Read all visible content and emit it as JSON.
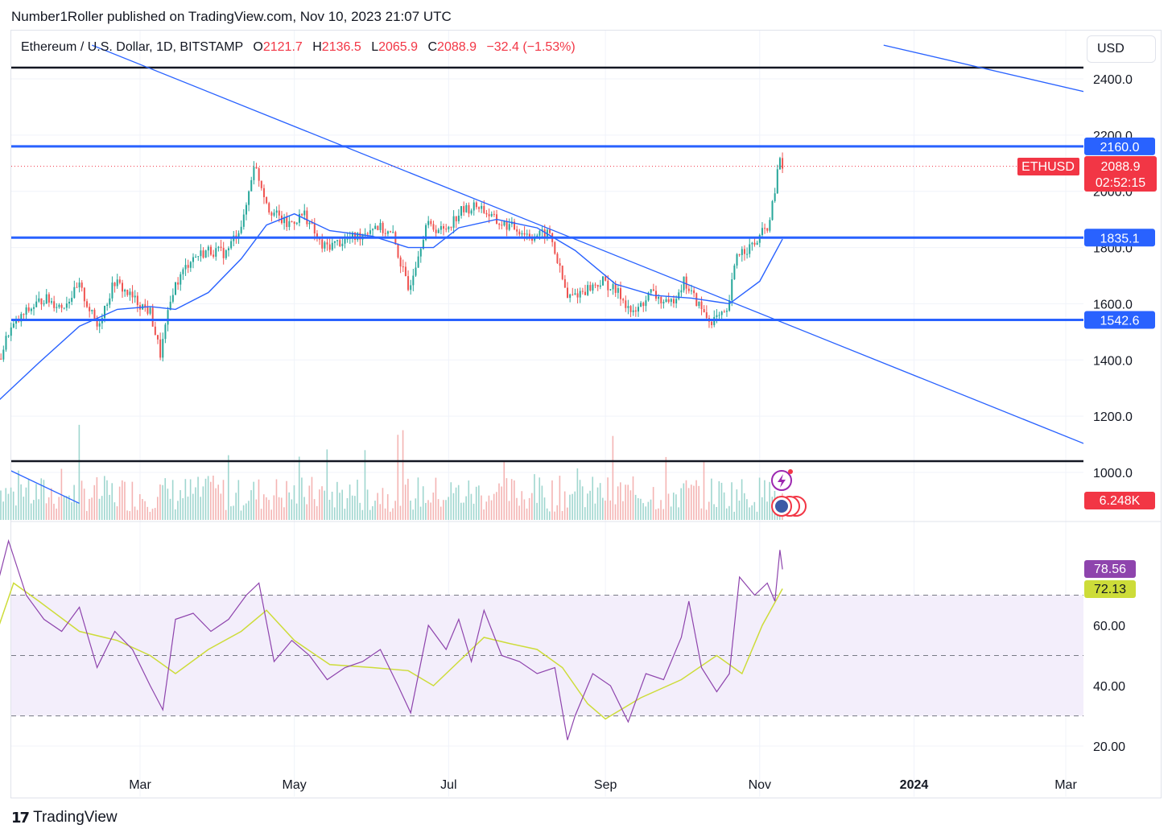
{
  "header": {
    "publisher_line": "Number1Roller published on TradingView.com, Nov 10, 2023 21:07 UTC"
  },
  "legend": {
    "symbol": "Ethereum / U.S. Dollar, 1D, BITSTAMP",
    "open_label": "O",
    "open": "2121.7",
    "high_label": "H",
    "high": "2136.5",
    "low_label": "L",
    "low": "2065.9",
    "close_label": "C",
    "close": "2088.9",
    "change": "−32.4 (−1.53%)"
  },
  "currency_button": "USD",
  "footer": {
    "brand": "TradingView",
    "logo_glyph": "17"
  },
  "colors": {
    "up": "#26a69a",
    "down": "#ef5350",
    "ma": "#2962ff",
    "trendline": "#2962ff",
    "level_blue": "#2962ff",
    "level_black": "#131722",
    "rsi": "#8e44ad",
    "rsi_ma": "#cddc39",
    "rsi_band": "#f3eefb",
    "price_badge": "#f23645"
  },
  "chart_data": [
    {
      "type": "candlestick",
      "title": "Ethereum / U.S. Dollar, 1D, BITSTAMP",
      "x_tick_labels": [
        "Mar",
        "May",
        "Jul",
        "Sep",
        "Nov",
        "2024",
        "Mar"
      ],
      "y_tick_labels": [
        "2400.0",
        "2200.0",
        "2000.0",
        "1800.0",
        "1600.0",
        "1400.0",
        "1200.0",
        "1000.0"
      ],
      "ylim": [
        930,
        2500
      ],
      "price_badge": {
        "symbol": "ETHUSD",
        "value": "2088.9",
        "countdown": "02:52:15"
      },
      "horizontal_levels": [
        {
          "label": "2160.0",
          "value": 2160,
          "color": "#2962ff"
        },
        {
          "label": "1835.1",
          "value": 1835.1,
          "color": "#2962ff"
        },
        {
          "label": "1542.6",
          "value": 1542.6,
          "color": "#2962ff"
        },
        {
          "label": "",
          "value": 2440,
          "color": "#131722"
        },
        {
          "label": "",
          "value": 1040,
          "color": "#131722"
        }
      ],
      "trendlines": [
        {
          "from": [
            "2023-02-10",
            2520
          ],
          "to": [
            "2024-03-20",
            1060
          ]
        },
        {
          "from": [
            "2023-12-20",
            2520
          ],
          "to": [
            "2024-03-20",
            2330
          ]
        },
        {
          "from": [
            "2023-01-01",
            1040
          ],
          "to": [
            "2023-02-05",
            890
          ]
        }
      ],
      "close_series": [
        [
          "2023-01-01",
          1300
        ],
        [
          "2023-01-08",
          1500
        ],
        [
          "2023-01-15",
          1570
        ],
        [
          "2023-01-22",
          1620
        ],
        [
          "2023-01-29",
          1590
        ],
        [
          "2023-02-05",
          1660
        ],
        [
          "2023-02-12",
          1520
        ],
        [
          "2023-02-19",
          1680
        ],
        [
          "2023-02-26",
          1620
        ],
        [
          "2023-03-05",
          1570
        ],
        [
          "2023-03-09",
          1420
        ],
        [
          "2023-03-14",
          1650
        ],
        [
          "2023-03-21",
          1760
        ],
        [
          "2023-03-28",
          1790
        ],
        [
          "2023-04-04",
          1780
        ],
        [
          "2023-04-11",
          1900
        ],
        [
          "2023-04-15",
          2100
        ],
        [
          "2023-04-21",
          1940
        ],
        [
          "2023-04-28",
          1880
        ],
        [
          "2023-05-05",
          1920
        ],
        [
          "2023-05-12",
          1800
        ],
        [
          "2023-05-19",
          1820
        ],
        [
          "2023-05-26",
          1840
        ],
        [
          "2023-06-02",
          1880
        ],
        [
          "2023-06-09",
          1840
        ],
        [
          "2023-06-15",
          1650
        ],
        [
          "2023-06-22",
          1880
        ],
        [
          "2023-06-29",
          1860
        ],
        [
          "2023-07-06",
          1930
        ],
        [
          "2023-07-13",
          1950
        ],
        [
          "2023-07-20",
          1890
        ],
        [
          "2023-07-27",
          1870
        ],
        [
          "2023-08-03",
          1840
        ],
        [
          "2023-08-10",
          1850
        ],
        [
          "2023-08-17",
          1620
        ],
        [
          "2023-08-24",
          1650
        ],
        [
          "2023-08-31",
          1680
        ],
        [
          "2023-09-07",
          1630
        ],
        [
          "2023-09-12",
          1560
        ],
        [
          "2023-09-19",
          1640
        ],
        [
          "2023-09-26",
          1590
        ],
        [
          "2023-10-02",
          1680
        ],
        [
          "2023-10-09",
          1580
        ],
        [
          "2023-10-12",
          1540
        ],
        [
          "2023-10-19",
          1560
        ],
        [
          "2023-10-23",
          1780
        ],
        [
          "2023-10-30",
          1810
        ],
        [
          "2023-11-05",
          1890
        ],
        [
          "2023-11-09",
          2120
        ],
        [
          "2023-11-10",
          2088.9
        ]
      ],
      "ma_series": [
        [
          "2023-01-01",
          1230
        ],
        [
          "2023-01-20",
          1390
        ],
        [
          "2023-02-05",
          1520
        ],
        [
          "2023-02-20",
          1580
        ],
        [
          "2023-03-05",
          1590
        ],
        [
          "2023-03-15",
          1580
        ],
        [
          "2023-03-28",
          1640
        ],
        [
          "2023-04-10",
          1760
        ],
        [
          "2023-04-20",
          1880
        ],
        [
          "2023-05-01",
          1920
        ],
        [
          "2023-05-15",
          1860
        ],
        [
          "2023-06-01",
          1840
        ],
        [
          "2023-06-15",
          1800
        ],
        [
          "2023-06-25",
          1800
        ],
        [
          "2023-07-05",
          1870
        ],
        [
          "2023-07-20",
          1900
        ],
        [
          "2023-08-05",
          1870
        ],
        [
          "2023-08-20",
          1790
        ],
        [
          "2023-09-05",
          1670
        ],
        [
          "2023-09-20",
          1630
        ],
        [
          "2023-10-05",
          1620
        ],
        [
          "2023-10-20",
          1600
        ],
        [
          "2023-11-01",
          1680
        ],
        [
          "2023-11-10",
          1830
        ]
      ]
    },
    {
      "type": "bar",
      "title": "Volume",
      "last_value_label": "6.248K"
    },
    {
      "type": "line",
      "title": "RSI",
      "y_tick_labels": [
        "60.00",
        "40.00",
        "20.00"
      ],
      "ylim": [
        12,
        92
      ],
      "bands": [
        70,
        50,
        30
      ],
      "last_values": {
        "rsi": "78.56",
        "rsi_ma": "72.13"
      },
      "rsi_series": [
        [
          "2023-01-01",
          65
        ],
        [
          "2023-01-08",
          88
        ],
        [
          "2023-01-15",
          70
        ],
        [
          "2023-01-22",
          62
        ],
        [
          "2023-01-29",
          58
        ],
        [
          "2023-02-05",
          66
        ],
        [
          "2023-02-12",
          46
        ],
        [
          "2023-02-19",
          58
        ],
        [
          "2023-02-26",
          52
        ],
        [
          "2023-03-05",
          40
        ],
        [
          "2023-03-10",
          32
        ],
        [
          "2023-03-15",
          62
        ],
        [
          "2023-03-22",
          64
        ],
        [
          "2023-03-29",
          58
        ],
        [
          "2023-04-05",
          62
        ],
        [
          "2023-04-12",
          70
        ],
        [
          "2023-04-17",
          74
        ],
        [
          "2023-04-23",
          48
        ],
        [
          "2023-04-30",
          55
        ],
        [
          "2023-05-07",
          50
        ],
        [
          "2023-05-14",
          42
        ],
        [
          "2023-05-21",
          46
        ],
        [
          "2023-05-28",
          48
        ],
        [
          "2023-06-04",
          52
        ],
        [
          "2023-06-11",
          40
        ],
        [
          "2023-06-16",
          31
        ],
        [
          "2023-06-23",
          60
        ],
        [
          "2023-06-30",
          52
        ],
        [
          "2023-07-05",
          62
        ],
        [
          "2023-07-10",
          48
        ],
        [
          "2023-07-15",
          65
        ],
        [
          "2023-07-22",
          50
        ],
        [
          "2023-07-29",
          48
        ],
        [
          "2023-08-05",
          44
        ],
        [
          "2023-08-12",
          46
        ],
        [
          "2023-08-17",
          22
        ],
        [
          "2023-08-20",
          30
        ],
        [
          "2023-08-27",
          44
        ],
        [
          "2023-09-03",
          40
        ],
        [
          "2023-09-10",
          28
        ],
        [
          "2023-09-17",
          44
        ],
        [
          "2023-09-24",
          42
        ],
        [
          "2023-10-01",
          56
        ],
        [
          "2023-10-04",
          68
        ],
        [
          "2023-10-09",
          46
        ],
        [
          "2023-10-15",
          38
        ],
        [
          "2023-10-20",
          44
        ],
        [
          "2023-10-24",
          76
        ],
        [
          "2023-10-30",
          70
        ],
        [
          "2023-11-04",
          74
        ],
        [
          "2023-11-07",
          68
        ],
        [
          "2023-11-09",
          85
        ],
        [
          "2023-11-10",
          78.56
        ]
      ],
      "rsi_ma_series": [
        [
          "2023-01-01",
          52
        ],
        [
          "2023-01-10",
          74
        ],
        [
          "2023-01-20",
          68
        ],
        [
          "2023-02-05",
          58
        ],
        [
          "2023-02-20",
          55
        ],
        [
          "2023-03-05",
          50
        ],
        [
          "2023-03-15",
          44
        ],
        [
          "2023-03-28",
          52
        ],
        [
          "2023-04-10",
          58
        ],
        [
          "2023-04-20",
          65
        ],
        [
          "2023-05-01",
          55
        ],
        [
          "2023-05-15",
          47
        ],
        [
          "2023-06-01",
          46
        ],
        [
          "2023-06-15",
          45
        ],
        [
          "2023-06-25",
          40
        ],
        [
          "2023-07-05",
          48
        ],
        [
          "2023-07-15",
          56
        ],
        [
          "2023-07-25",
          54
        ],
        [
          "2023-08-05",
          52
        ],
        [
          "2023-08-15",
          46
        ],
        [
          "2023-08-25",
          34
        ],
        [
          "2023-09-01",
          29
        ],
        [
          "2023-09-15",
          36
        ],
        [
          "2023-10-01",
          42
        ],
        [
          "2023-10-15",
          50
        ],
        [
          "2023-10-25",
          44
        ],
        [
          "2023-11-02",
          60
        ],
        [
          "2023-11-10",
          72.13
        ]
      ]
    }
  ]
}
